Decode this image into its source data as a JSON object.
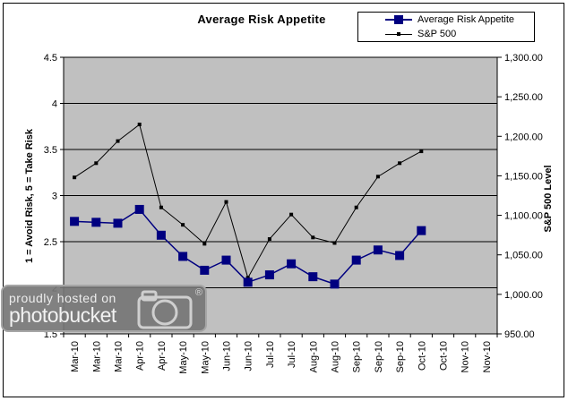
{
  "chart_data": {
    "type": "line",
    "title": "Average Risk Appetite",
    "grid": "horizontal",
    "plot_bg": "#c0c0c0",
    "legend_position": "top-right",
    "categories": [
      "Mar-10",
      "Mar-10",
      "Mar-10",
      "Apr-10",
      "Apr-10",
      "May-10",
      "May-10",
      "Jun-10",
      "Jun-10",
      "Jul-10",
      "Jul-10",
      "Aug-10",
      "Aug-10",
      "Sep-10",
      "Sep-10",
      "Sep-10",
      "Oct-10",
      "Oct-10",
      "Nov-10",
      "Nov-10"
    ],
    "series": [
      {
        "name": "Average Risk Appetite",
        "axis": "left",
        "color": "#000080",
        "marker": "square",
        "values": [
          2.72,
          2.71,
          2.7,
          2.85,
          2.57,
          2.34,
          2.19,
          2.3,
          2.06,
          2.14,
          2.26,
          2.12,
          2.04,
          2.3,
          2.41,
          2.35,
          2.62,
          null,
          null,
          null
        ]
      },
      {
        "name": "S&P 500",
        "axis": "right",
        "color": "#000000",
        "marker": "small-square",
        "values": [
          1148,
          1166,
          1194,
          1215,
          1110,
          1088,
          1064,
          1117,
          1021,
          1070,
          1101,
          1072,
          1065,
          1110,
          1149,
          1166,
          1181,
          null,
          null,
          null
        ]
      }
    ],
    "left_axis": {
      "title": "1 = Avoid Risk, 5 = Take Risk",
      "min": 1.5,
      "max": 4.5,
      "step": 0.5,
      "ticks": [
        "4.5",
        "4",
        "3.5",
        "3",
        "2.5",
        "2",
        "1.5"
      ]
    },
    "right_axis": {
      "title": "S&P 500 Level",
      "min": 950,
      "max": 1300,
      "step": 50,
      "ticks": [
        "1,300.00",
        "1,250.00",
        "1,200.00",
        "1,150.00",
        "1,100.00",
        "1,050.00",
        "1,000.00",
        "950.00"
      ]
    }
  },
  "watermark": {
    "line1": "proudly hosted on",
    "line2": "photobucket",
    "registered": "®",
    "bg_color": "#767676"
  }
}
